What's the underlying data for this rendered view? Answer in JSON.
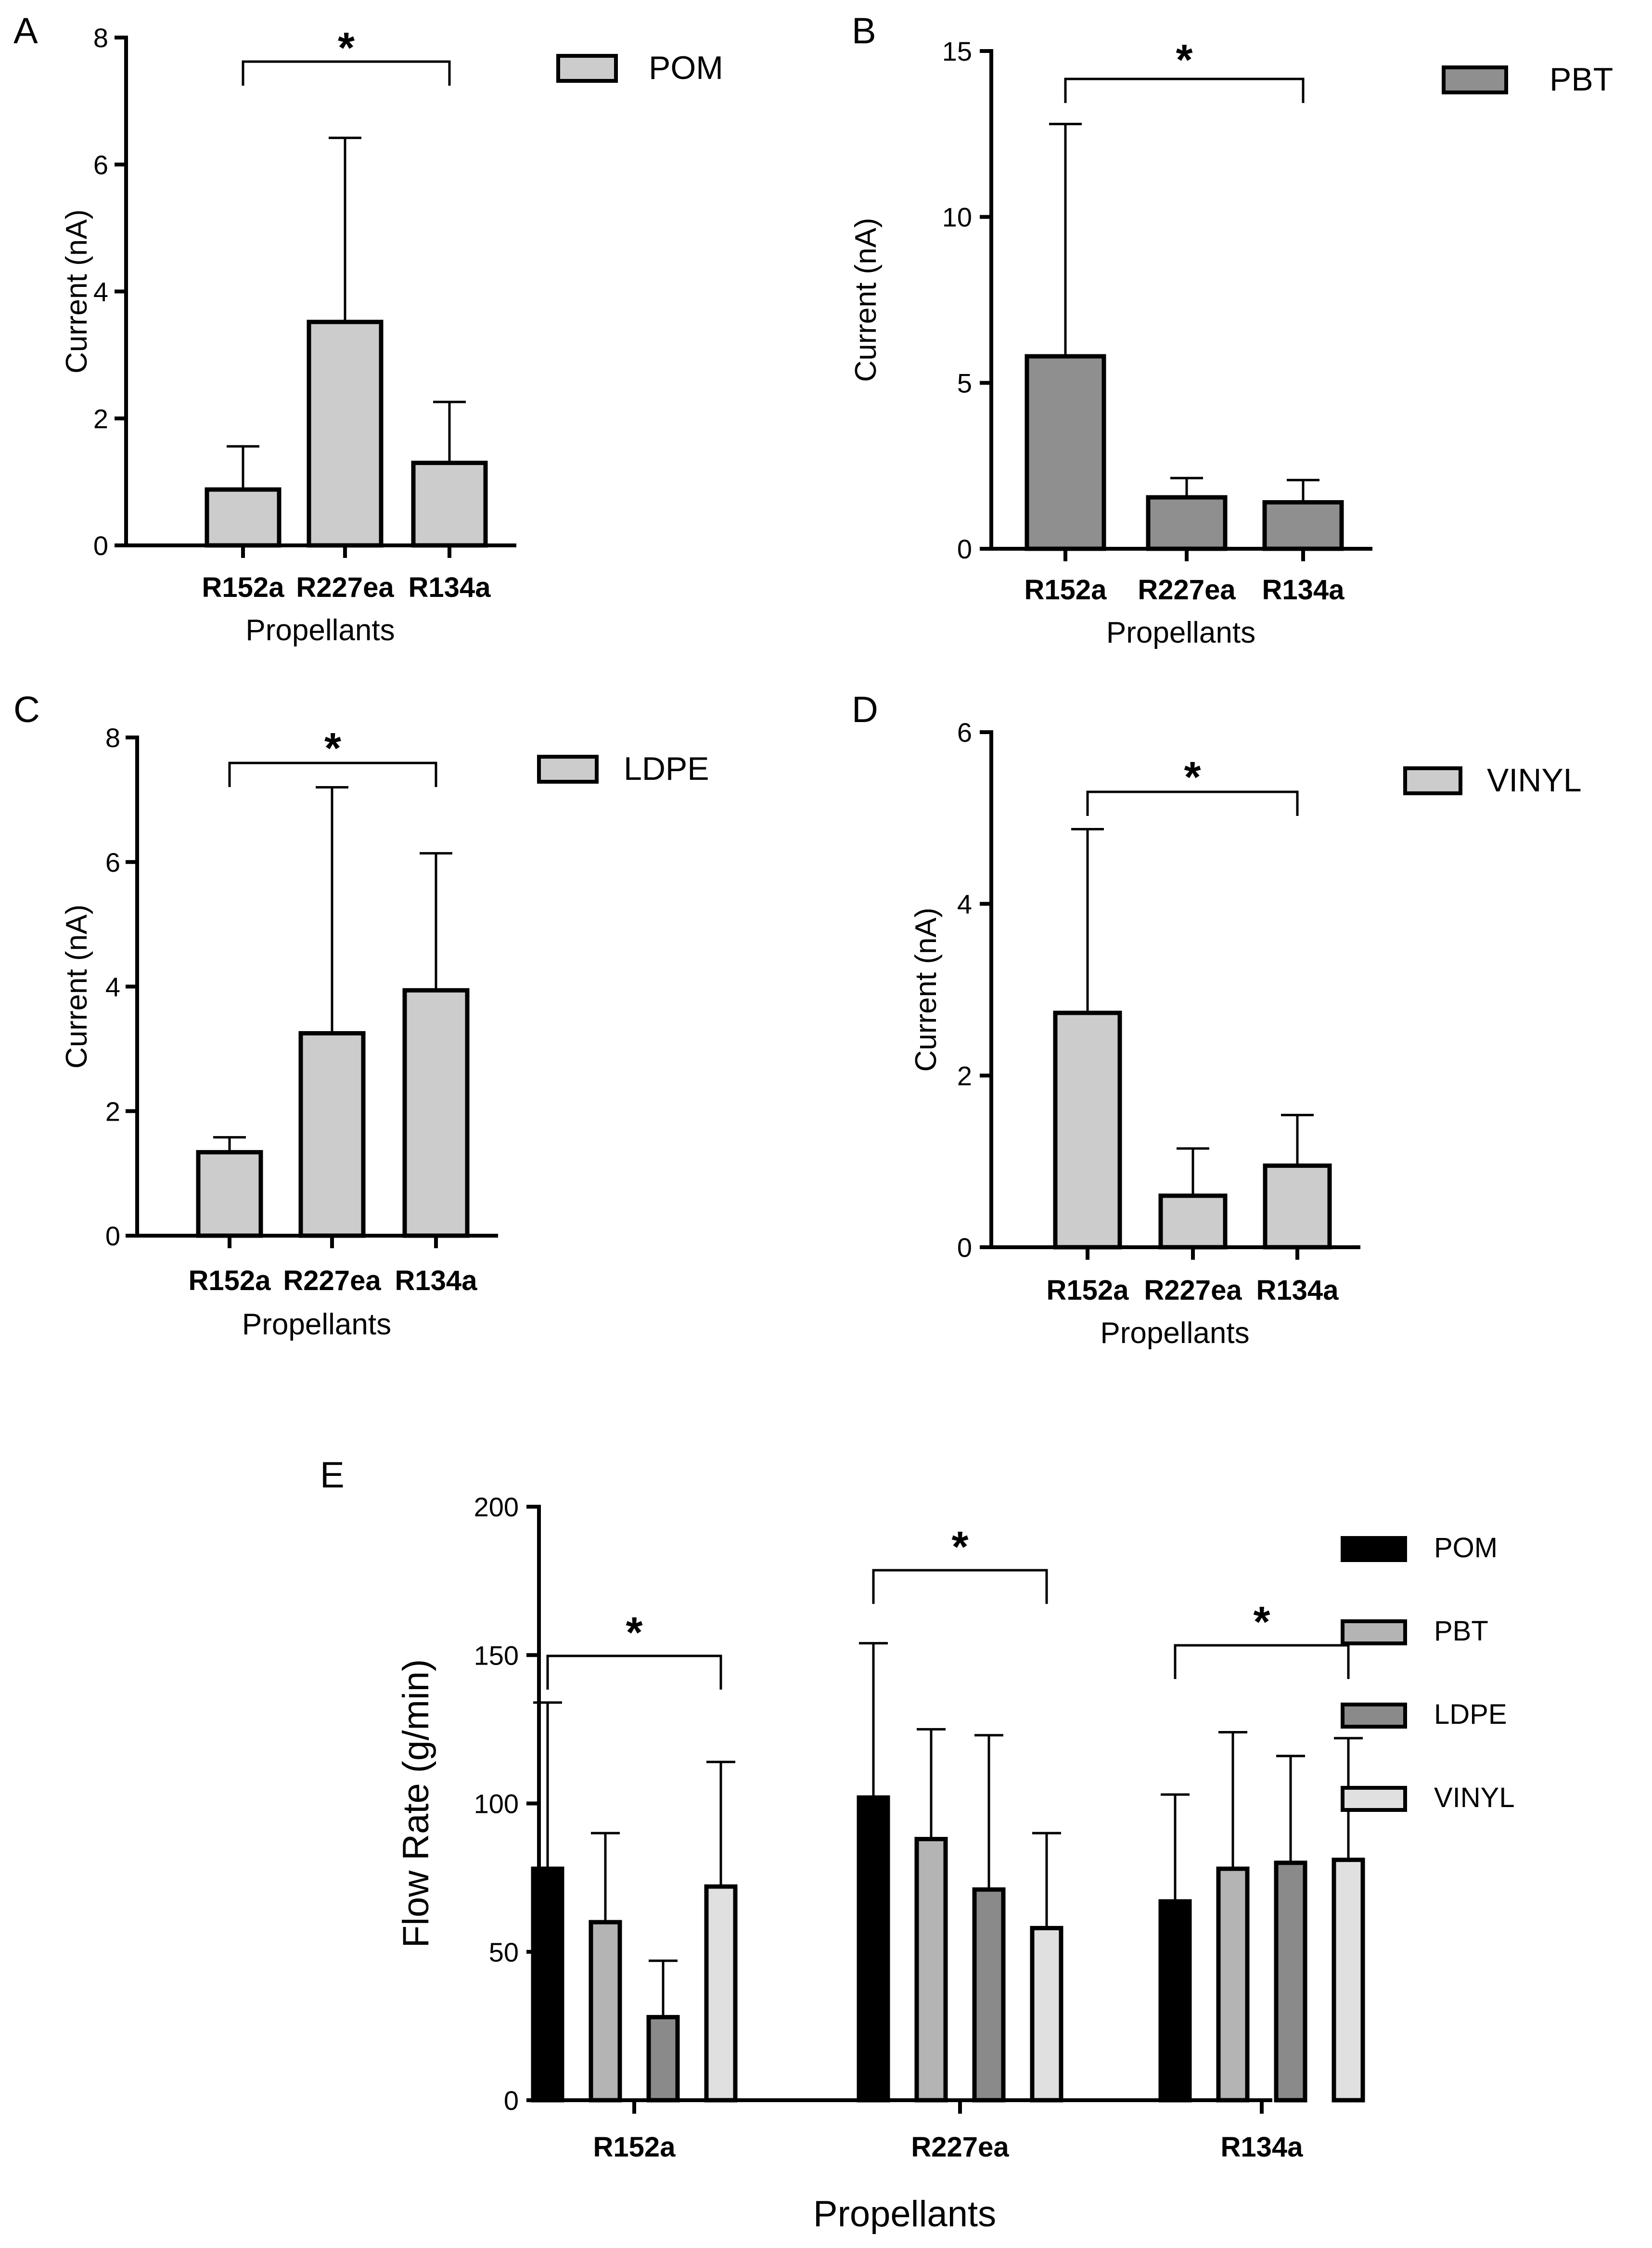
{
  "chart_data": [
    {
      "panel": "A",
      "type": "bar",
      "categories": [
        "R152a",
        "R227ea",
        "R134a"
      ],
      "series": [
        {
          "name": "POM",
          "color": "#cccccc",
          "values": [
            0.88,
            3.52,
            1.3
          ],
          "errors": [
            0.68,
            2.9,
            0.96
          ]
        }
      ],
      "xlabel": "Propellants",
      "ylabel": "Current (nA)",
      "ylim": [
        0,
        8
      ],
      "yticks": [
        0,
        2,
        4,
        6,
        8
      ],
      "significance": {
        "from": "R152a",
        "to": "R134a",
        "label": "*"
      }
    },
    {
      "panel": "B",
      "type": "bar",
      "categories": [
        "R152a",
        "R227ea",
        "R134a"
      ],
      "series": [
        {
          "name": "PBT",
          "color": "#8f8f8f",
          "values": [
            5.8,
            1.55,
            1.4
          ],
          "errors": [
            7.0,
            0.58,
            0.67
          ]
        }
      ],
      "xlabel": "Propellants",
      "ylabel": "Current (nA)",
      "ylim": [
        0,
        15
      ],
      "yticks": [
        0,
        5,
        10,
        15
      ],
      "significance": {
        "from": "R152a",
        "to": "R134a",
        "label": "*"
      }
    },
    {
      "panel": "C",
      "type": "bar",
      "categories": [
        "R152a",
        "R227ea",
        "R134a"
      ],
      "series": [
        {
          "name": "LDPE",
          "color": "#cccccc",
          "values": [
            1.34,
            3.25,
            3.94
          ],
          "errors": [
            0.24,
            3.95,
            2.2
          ]
        }
      ],
      "xlabel": "Propellants",
      "ylabel": "Current (nA)",
      "ylim": [
        0,
        8
      ],
      "yticks": [
        0,
        2,
        4,
        6,
        8
      ],
      "significance": {
        "from": "R152a",
        "to": "R134a",
        "label": "*"
      }
    },
    {
      "panel": "D",
      "type": "bar",
      "categories": [
        "R152a",
        "R227ea",
        "R134a"
      ],
      "series": [
        {
          "name": "VINYL",
          "color": "#cccccc",
          "values": [
            2.73,
            0.6,
            0.95
          ],
          "errors": [
            2.14,
            0.55,
            0.59
          ]
        }
      ],
      "xlabel": "Propellants",
      "ylabel": "Current (nA)",
      "ylim": [
        0,
        6
      ],
      "yticks": [
        0,
        2,
        4,
        6
      ],
      "significance": {
        "from": "R152a",
        "to": "R134a",
        "label": "*"
      }
    },
    {
      "panel": "E",
      "type": "bar",
      "categories": [
        "R152a",
        "R227ea",
        "R134a"
      ],
      "series": [
        {
          "name": "POM",
          "color": "#000000",
          "values": [
            78,
            102,
            67
          ],
          "errors": [
            56,
            52,
            36
          ]
        },
        {
          "name": "PBT",
          "color": "#b4b4b4",
          "values": [
            60,
            88,
            78
          ],
          "errors": [
            30,
            37,
            46
          ]
        },
        {
          "name": "LDPE",
          "color": "#8a8a8a",
          "values": [
            28,
            71,
            80
          ],
          "errors": [
            19,
            52,
            36
          ]
        },
        {
          "name": "VINYL",
          "color": "#e0e0e0",
          "values": [
            72,
            58,
            81
          ],
          "errors": [
            42,
            32,
            41
          ]
        }
      ],
      "xlabel": "Propellants",
      "ylabel": "Flow Rate (g/min)",
      "ylim": [
        0,
        200
      ],
      "yticks": [
        0,
        50,
        100,
        150,
        200
      ],
      "significance": [
        {
          "group": "R152a",
          "from": "POM",
          "to": "VINYL",
          "label": "*"
        },
        {
          "group": "R227ea",
          "from": "POM",
          "to": "VINYL",
          "label": "*"
        },
        {
          "group": "R134a",
          "from": "POM",
          "to": "VINYL",
          "label": "*"
        }
      ]
    }
  ]
}
